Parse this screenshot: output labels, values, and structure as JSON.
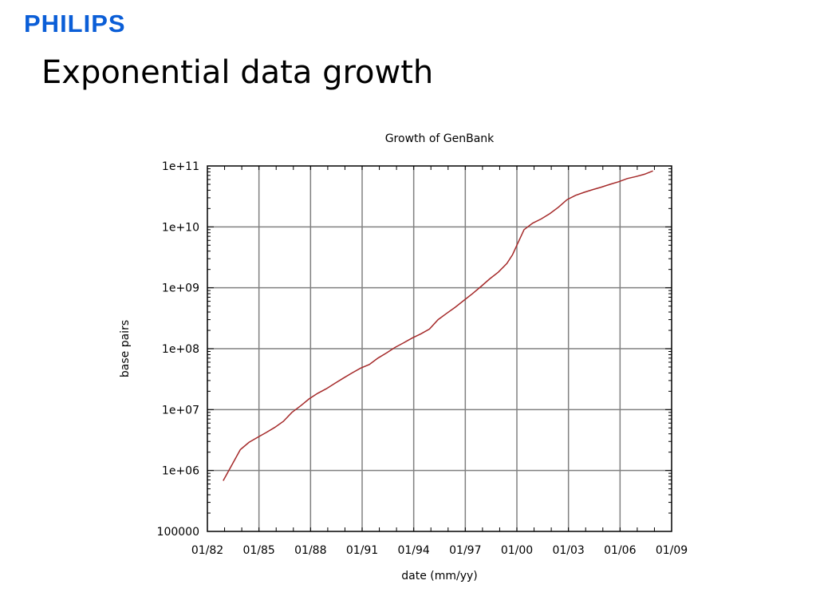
{
  "slide": {
    "logo": "PHILIPS",
    "title": "Exponential data growth"
  },
  "colors": {
    "logo": "#0b5ed7",
    "grid": "#808080",
    "series": "#a52a2a"
  },
  "chart_data": {
    "type": "line",
    "title": "Growth of GenBank",
    "xlabel": "date (mm/yy)",
    "ylabel": "base pairs",
    "yscale": "log",
    "grid": true,
    "xlim": [
      "1982-01",
      "2009-01"
    ],
    "ylim": [
      100000,
      100000000000
    ],
    "xticks": [
      "01/82",
      "01/85",
      "01/88",
      "01/91",
      "01/94",
      "01/97",
      "01/00",
      "01/03",
      "01/06",
      "01/09"
    ],
    "yticks": [
      "100000",
      "1e+06",
      "1e+07",
      "1e+08",
      "1e+09",
      "1e+10",
      "1e+11"
    ],
    "series": [
      {
        "x": [
          "1982-12",
          "1983-12",
          "1984-06",
          "1984-12",
          "1985-06",
          "1985-12",
          "1986-06",
          "1986-12",
          "1987-06",
          "1987-12",
          "1988-06",
          "1988-12",
          "1989-06",
          "1989-12",
          "1990-06",
          "1990-12",
          "1991-06",
          "1991-12",
          "1992-06",
          "1992-12",
          "1993-06",
          "1993-12",
          "1994-06",
          "1994-12",
          "1995-06",
          "1995-12",
          "1996-06",
          "1996-12",
          "1997-06",
          "1997-12",
          "1998-06",
          "1998-12",
          "1999-06",
          "1999-10",
          "2000-01",
          "2000-06",
          "2000-12",
          "2001-06",
          "2001-12",
          "2002-06",
          "2002-12",
          "2003-06",
          "2003-12",
          "2004-06",
          "2004-12",
          "2005-06",
          "2005-12",
          "2006-06",
          "2006-12",
          "2007-06",
          "2007-12"
        ],
        "y": [
          680000,
          2200000,
          2900000,
          3500000,
          4200000,
          5100000,
          6400000,
          9000000,
          11500000,
          15000000,
          18500000,
          22000000,
          27000000,
          33000000,
          40000000,
          48000000,
          55000000,
          70000000,
          85000000,
          105000000,
          125000000,
          150000000,
          175000000,
          210000000,
          300000000,
          380000000,
          480000000,
          620000000,
          800000000,
          1050000000,
          1400000000,
          1800000000,
          2500000000,
          3500000000,
          5000000000,
          9000000000,
          11500000000,
          13500000000,
          16500000000,
          21000000000,
          28000000000,
          33000000000,
          37000000000,
          41000000000,
          45000000000,
          50000000000,
          55000000000,
          62000000000,
          67000000000,
          73000000000,
          83000000000
        ]
      }
    ]
  }
}
